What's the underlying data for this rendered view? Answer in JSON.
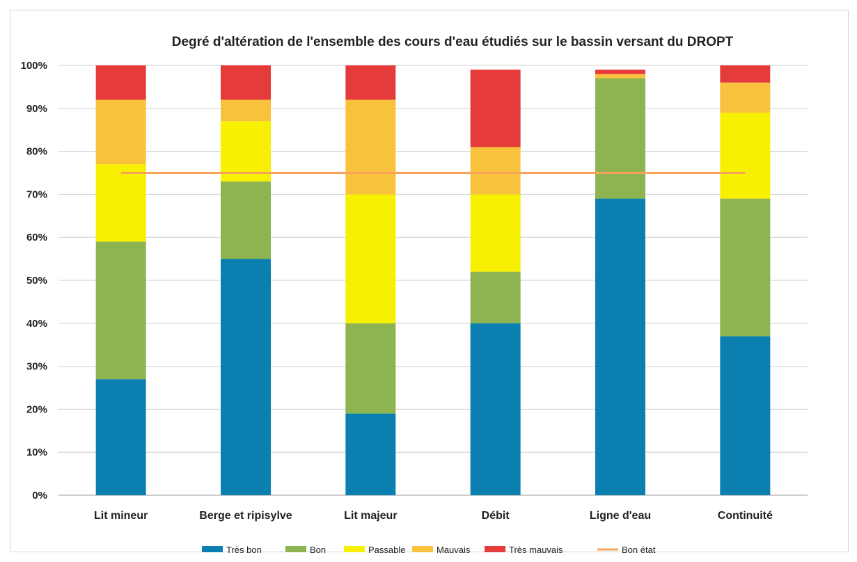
{
  "chart_data": {
    "type": "bar",
    "stacked": true,
    "title": "Degré d'altération de l'ensemble des cours d'eau étudiés sur le bassin versant du DROPT",
    "xlabel": "",
    "ylabel": "",
    "ylim": [
      0,
      100
    ],
    "y_ticks": [
      "0%",
      "10%",
      "20%",
      "30%",
      "40%",
      "50%",
      "60%",
      "70%",
      "80%",
      "90%",
      "100%"
    ],
    "grid": true,
    "legend_position": "bottom",
    "categories": [
      "Lit mineur",
      "Berge et ripisylve",
      "Lit majeur",
      "Débit",
      "Ligne d'eau",
      "Continuité"
    ],
    "series": [
      {
        "name": "Très bon",
        "color": "#0a7fb0",
        "values": [
          27,
          55,
          19,
          40,
          69,
          37
        ]
      },
      {
        "name": "Bon",
        "color": "#8db450",
        "values": [
          32,
          18,
          21,
          12,
          28,
          32
        ]
      },
      {
        "name": "Passable",
        "color": "#f7f000",
        "values": [
          18,
          14,
          30,
          18,
          0,
          20
        ]
      },
      {
        "name": "Mauvais",
        "color": "#f9c23c",
        "values": [
          15,
          5,
          22,
          11,
          1,
          7
        ]
      },
      {
        "name": "Très mauvais",
        "color": "#e63b3b",
        "values": [
          8,
          8,
          8,
          18,
          1,
          4
        ]
      }
    ],
    "reference_line": {
      "name": "Bon état",
      "color": "#f7a35c",
      "value": 75
    }
  }
}
